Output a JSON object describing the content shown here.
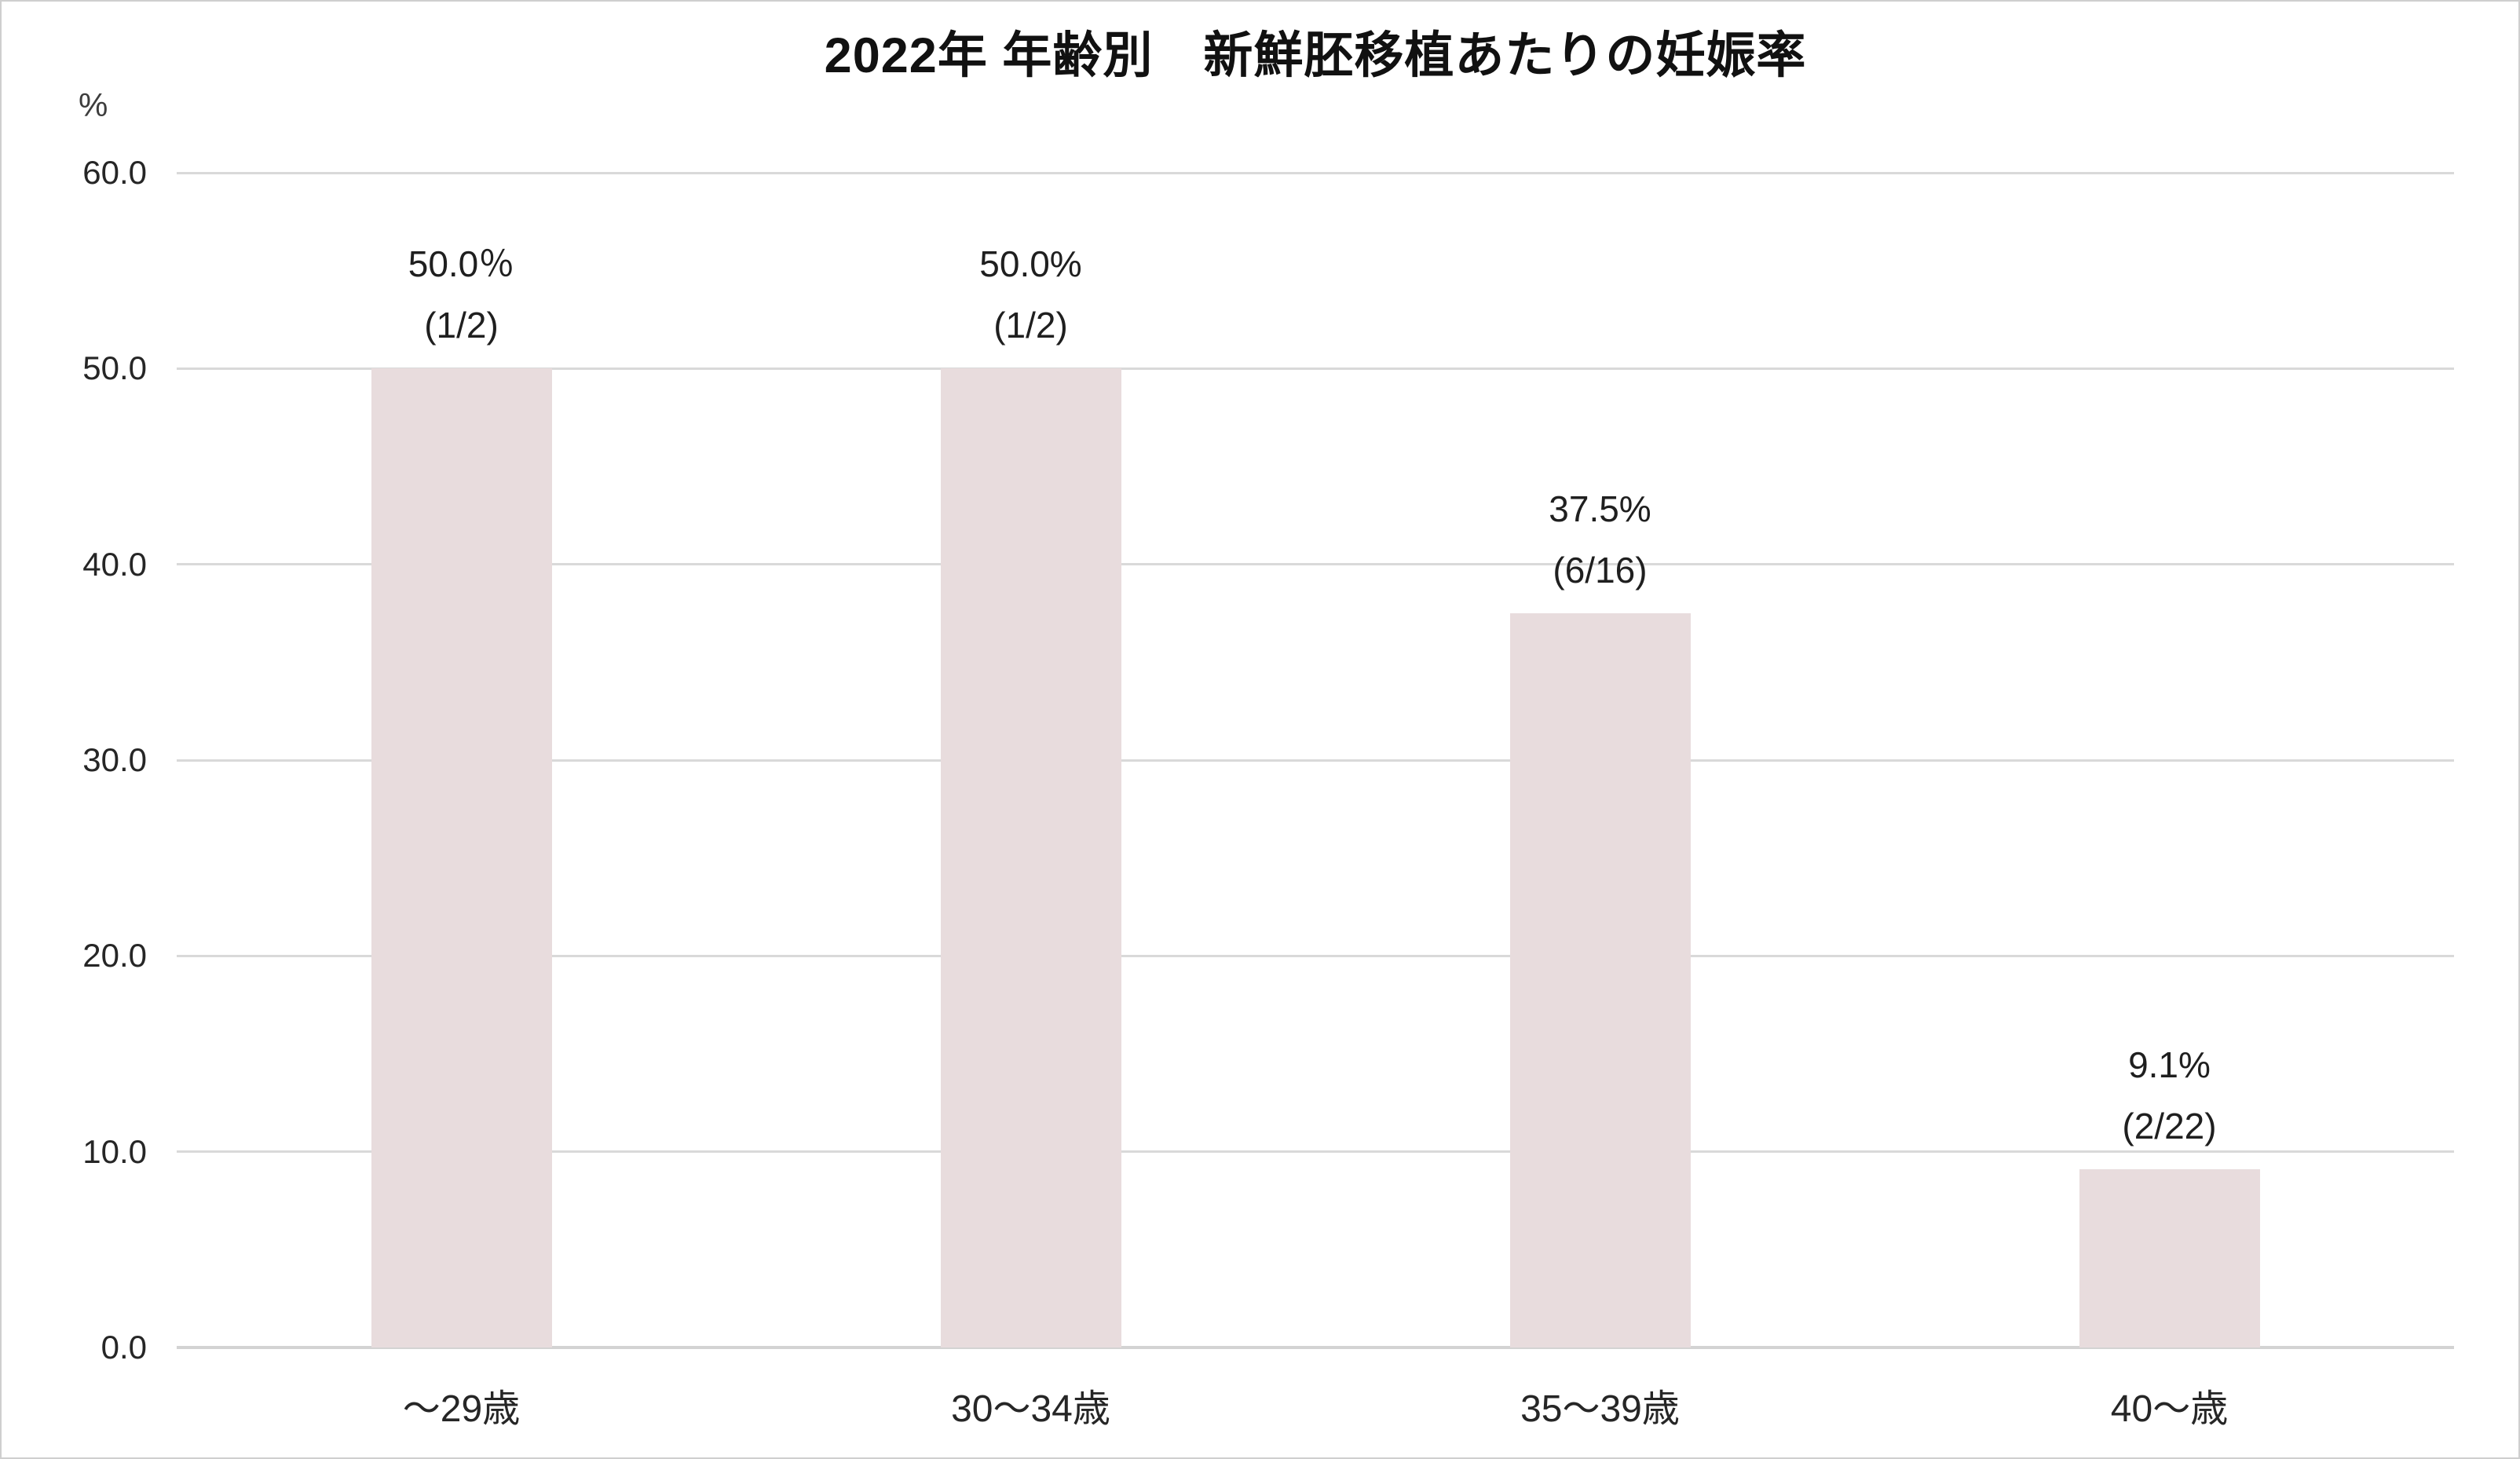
{
  "chart_data": {
    "type": "bar",
    "title": "2022年 年齢別　新鮮胚移植あたりの妊娠率",
    "unit_label": "%",
    "xlabel": "",
    "ylabel": "%",
    "categories": [
      "～29歳",
      "30～34歳",
      "35～39歳",
      "40～歳"
    ],
    "values": [
      50.0,
      50.0,
      37.5,
      9.1
    ],
    "data_labels": [
      {
        "percent": "50.0％",
        "fraction": "(1/2)"
      },
      {
        "percent": "50.0%",
        "fraction": "(1/2)"
      },
      {
        "percent": "37.5%",
        "fraction": "(6/16)"
      },
      {
        "percent": "9.1%",
        "fraction": "(2/22)"
      }
    ],
    "ylim": [
      0,
      60
    ],
    "ytick_labels": [
      "0.0",
      "10.0",
      "20.0",
      "30.0",
      "40.0",
      "50.0",
      "60.0"
    ],
    "ytick_values": [
      0,
      10,
      20,
      30,
      40,
      50,
      60
    ],
    "grid": true,
    "legend": false,
    "colors": {
      "bar_fill": "#e8dcdd",
      "gridline": "#d9d9d9",
      "text": "#262626",
      "title": "#111111",
      "border": "#cfcfcf"
    }
  }
}
